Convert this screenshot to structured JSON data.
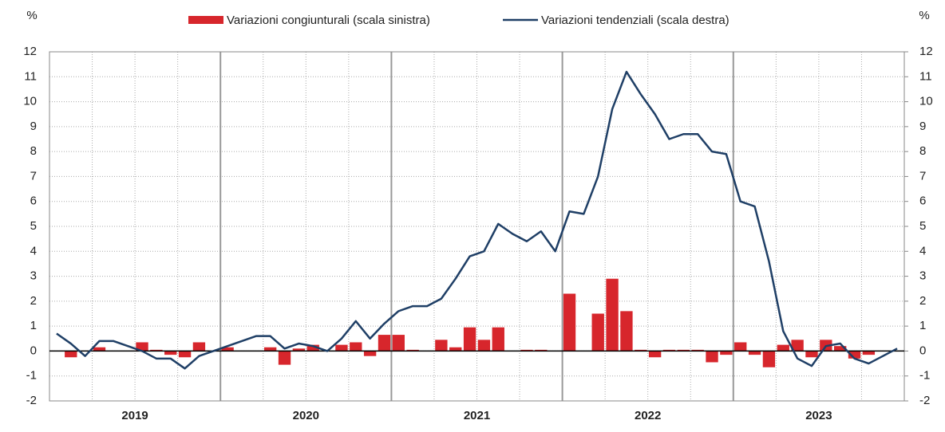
{
  "chart_data": {
    "type": "bar_line",
    "y_label": "%",
    "y2_label": "%",
    "categories": [
      "2019",
      null,
      null,
      null,
      null,
      null,
      null,
      null,
      null,
      null,
      null,
      null,
      "2020",
      null,
      null,
      null,
      null,
      null,
      null,
      null,
      null,
      null,
      null,
      null,
      "2021",
      null,
      null,
      null,
      null,
      null,
      null,
      null,
      null,
      null,
      null,
      null,
      "2022",
      null,
      null,
      null,
      null,
      null,
      null,
      null,
      null,
      null,
      null,
      null,
      "2023",
      null,
      null,
      null,
      null,
      null,
      null,
      null,
      null,
      null,
      null,
      null
    ],
    "series": [
      {
        "name": "Variazioni congiunturali (scala sinistra)",
        "type": "bar",
        "color": "#d7262c",
        "axis": "y",
        "values": [
          0,
          -0.25,
          0,
          0.15,
          0,
          0,
          0.35,
          0.05,
          -0.15,
          -0.25,
          0.35,
          0,
          0.15,
          0,
          0,
          0.15,
          -0.55,
          0.1,
          0.25,
          0,
          0.25,
          0.35,
          -0.2,
          0.65,
          0.65,
          0.05,
          0,
          0.45,
          0.15,
          0.95,
          0.45,
          0.95,
          0,
          0.05,
          0.05,
          0,
          2.3,
          0,
          1.5,
          2.9,
          1.6,
          0.05,
          -0.25,
          0.05,
          0.05,
          0.05,
          -0.45,
          -0.15,
          0.35,
          -0.15,
          -0.65,
          0.25,
          0.45,
          -0.25,
          0.45,
          0.2,
          -0.3,
          -0.15,
          0,
          0
        ]
      },
      {
        "name": "Variazioni tendenziali (scala destra)",
        "type": "line",
        "color": "#1f3f66",
        "axis": "y2",
        "values": [
          0.7,
          0.3,
          -0.2,
          0.4,
          0.4,
          0.2,
          0.0,
          -0.3,
          -0.3,
          -0.7,
          -0.2,
          0.0,
          0.2,
          0.4,
          0.6,
          0.6,
          0.1,
          0.3,
          0.2,
          0.0,
          0.5,
          1.2,
          0.5,
          1.1,
          1.6,
          1.8,
          1.8,
          2.1,
          2.9,
          3.8,
          4.0,
          5.1,
          4.7,
          4.4,
          4.8,
          4.0,
          5.6,
          5.5,
          7.0,
          9.7,
          11.2,
          10.3,
          9.5,
          8.5,
          8.7,
          8.7,
          8.0,
          7.9,
          6.0,
          5.8,
          3.6,
          0.8,
          -0.3,
          -0.6,
          0.2,
          0.3,
          -0.3,
          -0.5,
          -0.2,
          0.1
        ]
      }
    ],
    "ylim": [
      -2,
      12
    ],
    "yticks": [
      -2,
      -1,
      0,
      1,
      2,
      3,
      4,
      5,
      6,
      7,
      8,
      9,
      10,
      11,
      12
    ],
    "y2lim": [
      -2,
      12
    ],
    "y2ticks": [
      -2,
      -1,
      0,
      1,
      2,
      3,
      4,
      5,
      6,
      7,
      8,
      9,
      10,
      11,
      12
    ],
    "grid": true,
    "legend": "top"
  }
}
